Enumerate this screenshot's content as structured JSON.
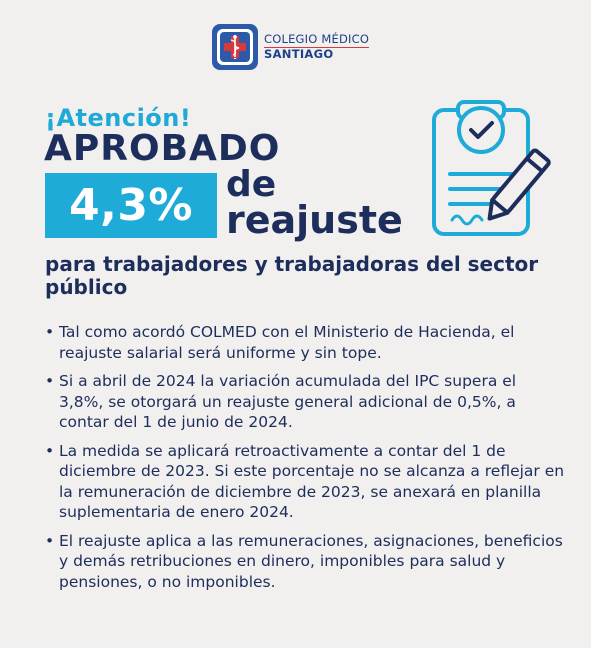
{
  "logo": {
    "line1": "COLEGIO MÉDICO",
    "line2": "SANTIAGO",
    "icon": "caduceus-cross-icon"
  },
  "headline": {
    "attention": "¡Atención!",
    "approved": "APROBADO",
    "percent": "4,3%",
    "de": "de",
    "reajuste": "reajuste",
    "subtitle": "para trabajadores y trabajadoras del sector público"
  },
  "illustration": {
    "icon": "document-checkmark-pen-icon"
  },
  "colors": {
    "navy": "#1d2d5c",
    "accent_blue": "#1eabd8",
    "background": "#f1f0ee",
    "logo_red": "#d63a3a"
  },
  "bullets": [
    "Tal como acordó COLMED con el Ministerio de Hacienda, el reajuste salarial será uniforme y sin tope.",
    "Si a abril de 2024 la variación acumulada del IPC supera el 3,8%, se otorgará un reajuste general adicional de 0,5%, a contar del 1 de junio de 2024.",
    "La medida se aplicará retroactivamente a contar del 1 de diciembre de 2023. Si este porcentaje no se alcanza a reflejar en la remuneración de diciembre de 2023, se anexará en planilla suplementaria de enero 2024.",
    "El reajuste aplica a las remuneraciones, asignaciones, beneficios y demás retribuciones en dinero, imponibles para salud y pensiones, o no imponibles."
  ]
}
